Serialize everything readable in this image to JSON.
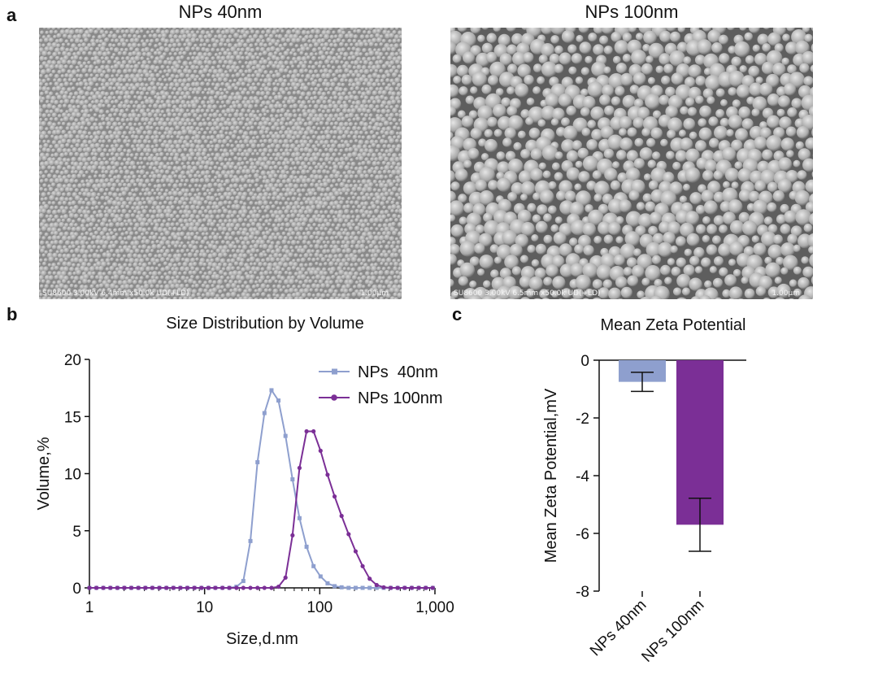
{
  "panels": {
    "a": {
      "letter": "a",
      "images": [
        {
          "title": "NPs 40nm",
          "caption": "SU8600 3.00kV 6.4mm x50.0k UD(+LD)",
          "scale_label": "1.00μm",
          "particle_size": "small"
        },
        {
          "title": "NPs 100nm",
          "caption": "SU8600 3.00kV 6.5mm x50.0k UD(+LD)",
          "scale_label": "1.00μm",
          "particle_size": "large"
        }
      ]
    },
    "b": {
      "letter": "b"
    },
    "c": {
      "letter": "c"
    }
  },
  "colors": {
    "np40": "#8e9fce",
    "np100": "#7b2f96",
    "axis": "#111111",
    "sem_bg": "#7a7a7a"
  },
  "chart_data": [
    {
      "type": "line",
      "title": "Size Distribution by Volume",
      "xlabel": "Size,d.nm",
      "ylabel": "Volume,%",
      "xscale": "log",
      "xlim": [
        1,
        1000
      ],
      "ylim": [
        0,
        20
      ],
      "xticks": [
        1,
        10,
        100,
        1000
      ],
      "xtick_labels": [
        "1",
        "10",
        "100",
        "1,000"
      ],
      "yticks": [
        0,
        5,
        10,
        15,
        20
      ],
      "legend_position": "top-right",
      "series": [
        {
          "name": "NPs  40nm",
          "color": "#8e9fce",
          "x": [
            1,
            1.15,
            1.32,
            1.52,
            1.75,
            2.01,
            2.31,
            2.66,
            3.06,
            3.52,
            4.05,
            4.66,
            5.36,
            6.16,
            7.09,
            8.16,
            9.39,
            10.8,
            12.4,
            14.3,
            16.4,
            18.9,
            21.7,
            25,
            28.8,
            33.1,
            38.1,
            43.8,
            50.4,
            58,
            66.7,
            76.8,
            88.3,
            101.6,
            116.9,
            134.5,
            154.7,
            178,
            204.8,
            235.6,
            271.1,
            311.9,
            358.8,
            412.8,
            474.9,
            546.4,
            628.6,
            723.3,
            832.1,
            957.4
          ],
          "y": [
            0,
            0,
            0,
            0,
            0,
            0,
            0,
            0,
            0,
            0,
            0,
            0,
            0,
            0,
            0,
            0,
            0,
            0,
            0,
            0,
            0,
            0.1,
            0.6,
            4.1,
            11.0,
            15.3,
            17.3,
            16.4,
            13.3,
            9.5,
            6.1,
            3.6,
            1.9,
            1.0,
            0.4,
            0.15,
            0.05,
            0,
            0,
            0,
            0,
            0,
            0,
            0,
            0,
            0,
            0,
            0,
            0,
            0
          ]
        },
        {
          "name": "NPs 100nm",
          "color": "#7b2f96",
          "x": [
            1,
            1.15,
            1.32,
            1.52,
            1.75,
            2.01,
            2.31,
            2.66,
            3.06,
            3.52,
            4.05,
            4.66,
            5.36,
            6.16,
            7.09,
            8.16,
            9.39,
            10.8,
            12.4,
            14.3,
            16.4,
            18.9,
            21.7,
            25,
            28.8,
            33.1,
            38.1,
            43.8,
            50.4,
            58,
            66.7,
            76.8,
            88.3,
            101.6,
            116.9,
            134.5,
            154.7,
            178,
            204.8,
            235.6,
            271.1,
            311.9,
            358.8,
            412.8,
            474.9,
            546.4,
            628.6,
            723.3,
            832.1,
            957.4
          ],
          "y": [
            0,
            0,
            0,
            0,
            0,
            0,
            0,
            0,
            0,
            0,
            0,
            0,
            0,
            0,
            0,
            0,
            0,
            0,
            0,
            0,
            0,
            0,
            0,
            0,
            0,
            0,
            0,
            0.1,
            0.9,
            4.6,
            10.5,
            13.7,
            13.7,
            12.0,
            9.9,
            8.0,
            6.3,
            4.7,
            3.2,
            1.9,
            0.8,
            0.25,
            0.05,
            0,
            0,
            0,
            0,
            0,
            0,
            0
          ]
        }
      ]
    },
    {
      "type": "bar",
      "title": "Mean Zeta Potential",
      "ylabel": "Mean Zeta Potential,mV",
      "categories": [
        "NPs 40nm",
        "NPs 100nm"
      ],
      "values": [
        -0.75,
        -5.7
      ],
      "errors": [
        0.33,
        0.92
      ],
      "colors": [
        "#8e9fce",
        "#7b2f96"
      ],
      "ylim": [
        -8,
        0
      ],
      "yticks": [
        0,
        -2,
        -4,
        -6,
        -8
      ]
    }
  ]
}
